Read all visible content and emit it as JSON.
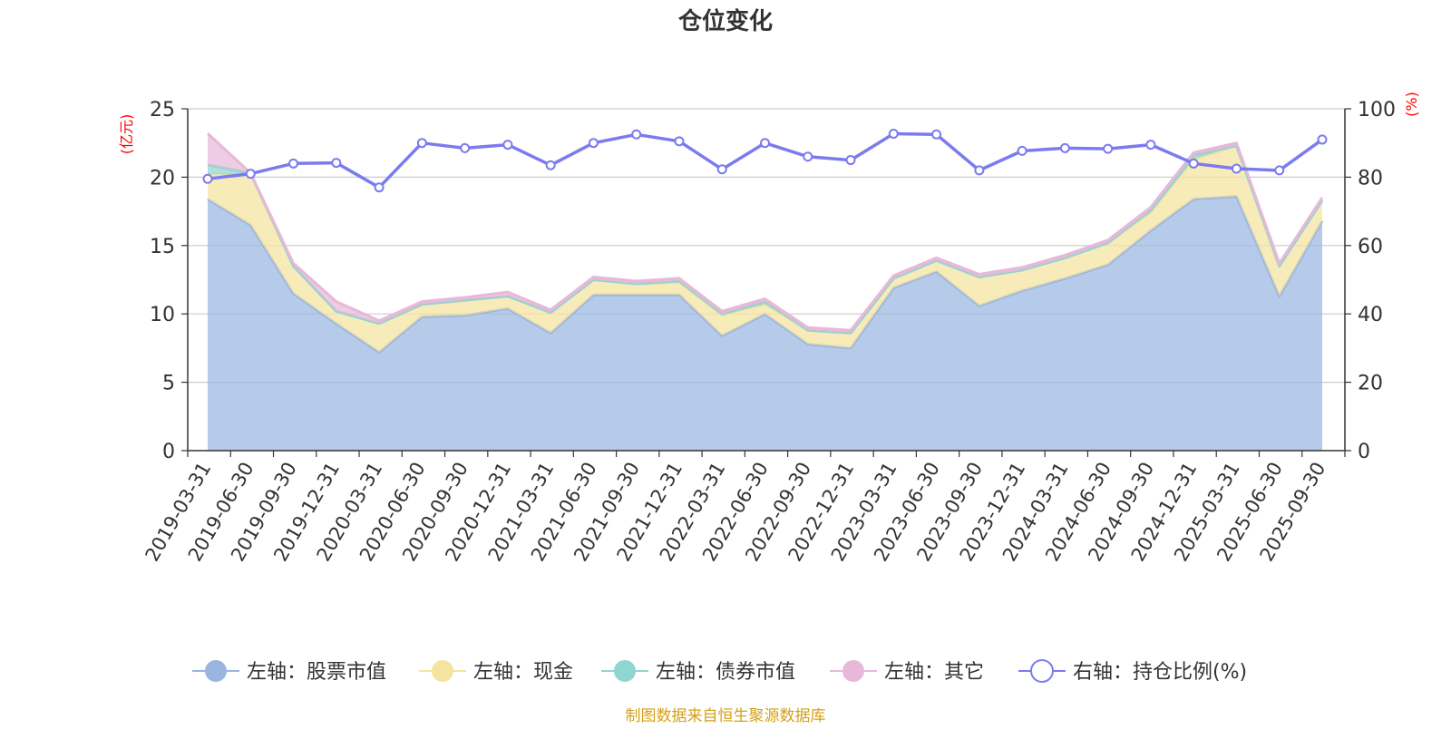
{
  "chart_data": {
    "type": "area",
    "title": "仓位变化",
    "left_axis_label": "(亿元)",
    "right_axis_label": "(%)",
    "left_ylim": [
      0,
      25
    ],
    "left_ticks": [
      "0",
      "5",
      "10",
      "15",
      "20",
      "25"
    ],
    "right_ylim": [
      0,
      100
    ],
    "right_ticks": [
      "0",
      "20",
      "40",
      "60",
      "80",
      "100"
    ],
    "categories": [
      "2019-03-31",
      "2019-06-30",
      "2019-09-30",
      "2019-12-31",
      "2020-03-31",
      "2020-06-30",
      "2020-09-30",
      "2020-12-31",
      "2021-03-31",
      "2021-06-30",
      "2021-09-30",
      "2021-12-31",
      "2022-03-31",
      "2022-06-30",
      "2022-09-30",
      "2022-12-31",
      "2023-03-31",
      "2023-06-30",
      "2023-09-30",
      "2023-12-31",
      "2024-03-31",
      "2024-06-30",
      "2024-09-30",
      "2024-12-31",
      "2025-03-31",
      "2025-06-30",
      "2025-09-30"
    ],
    "stacked_series": [
      {
        "name": "左轴：股票市值",
        "color": "#9ab5e0",
        "values": [
          18.4,
          16.5,
          11.5,
          9.3,
          7.2,
          9.8,
          9.9,
          10.4,
          8.6,
          11.4,
          11.4,
          11.4,
          8.4,
          10.0,
          7.8,
          7.5,
          11.9,
          13.1,
          10.6,
          11.7,
          12.6,
          13.6,
          16.1,
          18.4,
          18.6,
          11.3,
          16.8
        ]
      },
      {
        "name": "左轴：现金",
        "color": "#f5e3a0",
        "values": [
          1.8,
          3.7,
          2.0,
          0.9,
          2.1,
          0.9,
          1.1,
          0.9,
          1.5,
          1.1,
          0.8,
          0.9,
          1.5,
          0.7,
          1.0,
          1.1,
          0.7,
          0.8,
          2.1,
          1.5,
          1.5,
          1.6,
          1.3,
          2.9,
          3.7,
          2.2,
          1.5
        ]
      },
      {
        "name": "左轴：债券市值",
        "color": "#8fd5d0",
        "values": [
          0.7,
          0.1,
          0.0,
          0.0,
          0.0,
          0.0,
          0.0,
          0.0,
          0.0,
          0.0,
          0.0,
          0.1,
          0.1,
          0.2,
          0.0,
          0.0,
          0.0,
          0.0,
          0.0,
          0.0,
          0.0,
          0.0,
          0.2,
          0.3,
          0.0,
          0.0,
          0.0
        ]
      },
      {
        "name": "左轴：其它",
        "color": "#e8b8d8",
        "values": [
          2.3,
          0.0,
          0.2,
          0.7,
          0.2,
          0.2,
          0.2,
          0.3,
          0.2,
          0.2,
          0.2,
          0.2,
          0.2,
          0.2,
          0.2,
          0.2,
          0.2,
          0.2,
          0.2,
          0.2,
          0.2,
          0.2,
          0.2,
          0.2,
          0.2,
          0.2,
          0.2
        ]
      }
    ],
    "line_series": {
      "name": "右轴：持仓比例(%)",
      "color": "#7b7bf0",
      "values": [
        79.5,
        81,
        84,
        84.2,
        77,
        90,
        88.5,
        89.5,
        83.5,
        90,
        92.5,
        90.5,
        82.3,
        90,
        86,
        85,
        92.7,
        92.5,
        82,
        87.7,
        88.5,
        88.3,
        89.5,
        84,
        82.5,
        82,
        91
      ]
    },
    "legend_position": "bottom",
    "grid": true
  },
  "legend": [
    {
      "label": "左轴：股票市值",
      "color": "#9ab5e0",
      "hollow": false
    },
    {
      "label": "左轴：现金",
      "color": "#f5e3a0",
      "hollow": false
    },
    {
      "label": "左轴：债券市值",
      "color": "#8fd5d0",
      "hollow": false
    },
    {
      "label": "左轴：其它",
      "color": "#e8b8d8",
      "hollow": false
    },
    {
      "label": "右轴：持仓比例(%)",
      "color": "#7b7bf0",
      "hollow": true
    }
  ],
  "footer": {
    "source": "制图数据来自恒生聚源数据库"
  },
  "colors": {
    "axis_label_red": "#ff0000",
    "footer_gold": "#d4a017",
    "grid": "#cccccc",
    "text": "#333333"
  }
}
